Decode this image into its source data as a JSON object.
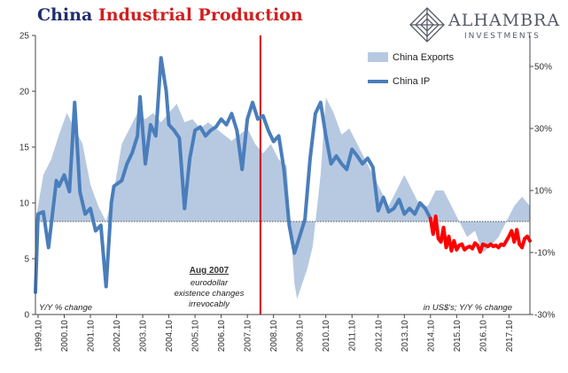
{
  "header": {
    "title_part1": "China",
    "title_part2": "Industrial Production"
  },
  "logo": {
    "name": "ALHAMBRA",
    "sub": "INVESTMENTS"
  },
  "chart_data": {
    "type": "line",
    "title": "China Industrial Production",
    "left_axis": {
      "ylim": [
        0,
        25
      ],
      "ticks": [
        "0",
        "5",
        "10",
        "15",
        "20",
        "25"
      ],
      "label": "Y/Y % change"
    },
    "right_axis": {
      "ylim": [
        -30,
        60
      ],
      "ticks": [
        "-30%",
        "-10%",
        "10%",
        "30%",
        "50%"
      ],
      "label": "in US$'s; Y/Y % change"
    },
    "x_ticks": [
      "1999.10",
      "2000.10",
      "2001.10",
      "2002.10",
      "2003.10",
      "2004.10",
      "2005.10",
      "2006.10",
      "2007.10",
      "2008.10",
      "2009.10",
      "2010.10",
      "2011.10",
      "2012.10",
      "2013.10",
      "2014.10",
      "2015.10",
      "2016.10",
      "2017.10"
    ],
    "xlim": [
      1999.0,
      2017.9
    ],
    "legend": [
      "China Exports",
      "China IP"
    ],
    "legend_position": "top-right",
    "colors": {
      "exports": "#b7c9e1",
      "ip": "#4a7ebb",
      "ip_highlight": "#ff0000",
      "vline": "#d40000",
      "baseline": "#555555"
    },
    "series": [
      {
        "name": "China Exports",
        "axis": "right",
        "x": [
          1999.0,
          1999.3,
          1999.6,
          1999.9,
          2000.2,
          2000.5,
          2000.8,
          2001.1,
          2001.4,
          2001.7,
          2002.0,
          2002.3,
          2002.6,
          2002.9,
          2003.2,
          2003.5,
          2003.8,
          2004.1,
          2004.4,
          2004.7,
          2005.0,
          2005.3,
          2005.6,
          2005.9,
          2006.2,
          2006.5,
          2006.8,
          2007.1,
          2007.4,
          2007.7,
          2008.0,
          2008.3,
          2008.6,
          2008.9,
          2009.0,
          2009.2,
          2009.4,
          2009.6,
          2009.9,
          2010.1,
          2010.4,
          2010.7,
          2011.0,
          2011.3,
          2011.6,
          2011.9,
          2012.2,
          2012.5,
          2012.8,
          2013.1,
          2013.4,
          2013.7,
          2014.0,
          2014.3,
          2014.6,
          2014.9,
          2015.2,
          2015.5,
          2015.8,
          2016.1,
          2016.4,
          2016.7,
          2017.0,
          2017.3,
          2017.6,
          2017.9
        ],
        "values": [
          0,
          15,
          20,
          28,
          35,
          30,
          25,
          12,
          5,
          0,
          10,
          25,
          30,
          35,
          33,
          35,
          32,
          35,
          38,
          32,
          33,
          30,
          32,
          30,
          28,
          26,
          28,
          30,
          25,
          22,
          25,
          20,
          18,
          -20,
          -25,
          -20,
          -15,
          -8,
          15,
          40,
          35,
          28,
          30,
          25,
          20,
          15,
          10,
          5,
          10,
          15,
          10,
          5,
          5,
          10,
          10,
          5,
          0,
          -5,
          -3,
          -10,
          -8,
          -5,
          0,
          5,
          8,
          5
        ]
      },
      {
        "name": "China IP",
        "axis": "left",
        "x": [
          1999.0,
          1999.1,
          1999.3,
          1999.5,
          1999.8,
          1999.9,
          2000.1,
          2000.3,
          2000.5,
          2000.7,
          2000.9,
          2001.1,
          2001.3,
          2001.5,
          2001.7,
          2001.9,
          2002.0,
          2002.3,
          2002.5,
          2002.7,
          2002.9,
          2003.0,
          2003.2,
          2003.4,
          2003.6,
          2003.8,
          2004.0,
          2004.1,
          2004.3,
          2004.5,
          2004.7,
          2004.9,
          2005.1,
          2005.3,
          2005.5,
          2005.7,
          2005.9,
          2006.1,
          2006.3,
          2006.5,
          2006.7,
          2006.9,
          2007.1,
          2007.3,
          2007.5,
          2007.7,
          2007.9,
          2008.1,
          2008.3,
          2008.5,
          2008.7,
          2008.9,
          2009.1,
          2009.3,
          2009.5,
          2009.7,
          2009.9,
          2010.1,
          2010.3,
          2010.5,
          2010.7,
          2010.9,
          2011.1,
          2011.3,
          2011.5,
          2011.7,
          2011.9,
          2012.1,
          2012.3,
          2012.5,
          2012.7,
          2012.9,
          2013.1,
          2013.3,
          2013.5,
          2013.7,
          2013.9,
          2014.1
        ],
        "values": [
          2,
          9,
          9.2,
          6,
          12,
          11.5,
          12.5,
          11,
          19,
          11,
          9,
          9.5,
          7.5,
          8,
          2.5,
          10,
          11.5,
          12,
          13.5,
          14.5,
          16,
          19.5,
          13.5,
          17,
          16,
          23,
          20,
          17,
          16.5,
          15.8,
          9.5,
          14,
          16.5,
          16.8,
          16,
          16.5,
          16.8,
          17.5,
          17,
          18,
          16.5,
          13,
          17.5,
          19,
          17.5,
          17.8,
          16.5,
          15.5,
          16,
          13,
          8,
          5.5,
          7,
          8.5,
          14,
          18,
          19,
          16,
          13.5,
          14.2,
          13.5,
          13,
          14.8,
          14.2,
          13.5,
          14,
          13.2,
          9.3,
          10.5,
          9.2,
          9.5,
          10.3,
          9,
          9.5,
          9,
          10,
          9.5,
          8.6
        ]
      },
      {
        "name": "",
        "axis": "left",
        "x": [
          2014.1,
          2014.2,
          2014.3,
          2014.4,
          2014.5,
          2014.6,
          2014.7,
          2014.8,
          2014.9,
          2015.0,
          2015.1,
          2015.2,
          2015.3,
          2015.4,
          2015.5,
          2015.6,
          2015.7,
          2015.8,
          2015.9,
          2016.0,
          2016.1,
          2016.2,
          2016.3,
          2016.4,
          2016.5,
          2016.6,
          2016.7,
          2016.8,
          2016.9,
          2017.0,
          2017.1,
          2017.2,
          2017.3,
          2017.4,
          2017.5,
          2017.6,
          2017.7,
          2017.8,
          2017.9
        ],
        "values": [
          8.6,
          7.2,
          8.8,
          6.8,
          6.5,
          7.8,
          6,
          7.0,
          5.7,
          6.6,
          5.8,
          6.2,
          6.3,
          5.8,
          6.0,
          6.1,
          5.9,
          6.4,
          6.2,
          5.6,
          6.3,
          6.2,
          6.1,
          6.3,
          6.1,
          6.2,
          6.0,
          6.3,
          6.2,
          6.6,
          7.0,
          7.5,
          6.5,
          7.6,
          6.3,
          6.0,
          6.8,
          7.0,
          6.6
        ]
      }
    ],
    "annotations": {
      "event_date": "Aug 2007",
      "event_text": [
        "eurodollar",
        "existence changes",
        "irrevocably"
      ]
    }
  }
}
